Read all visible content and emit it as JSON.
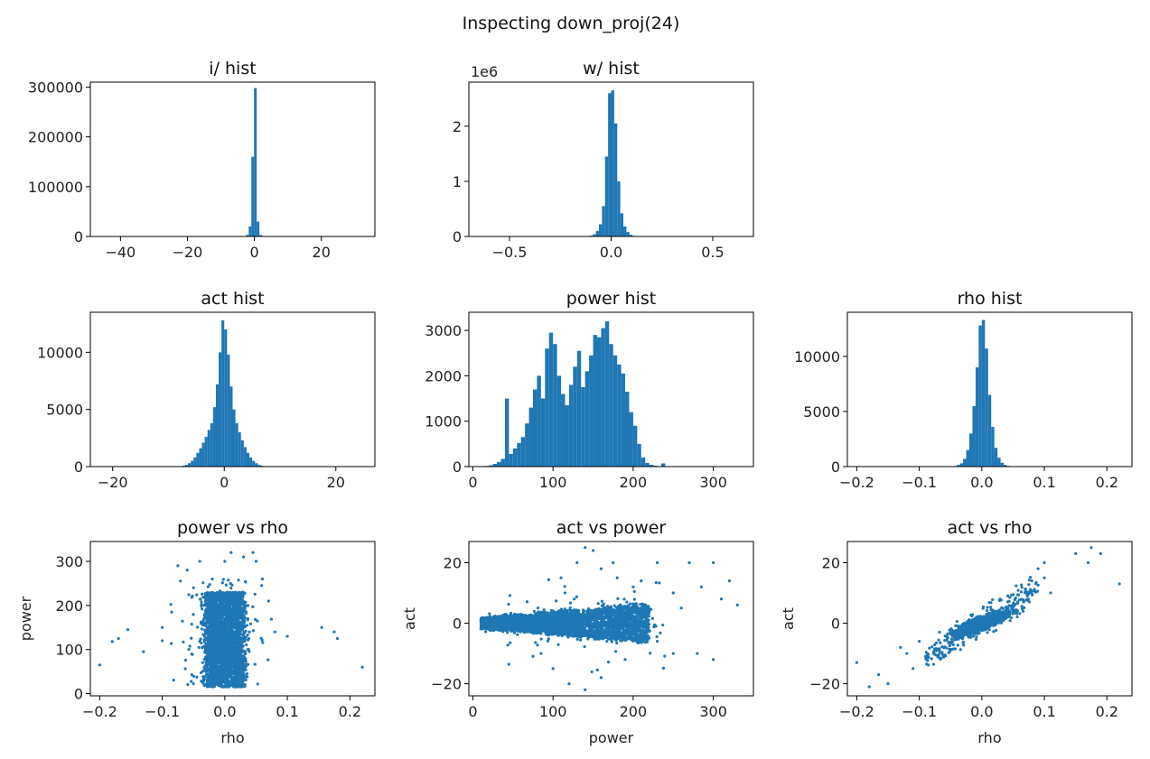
{
  "suptitle": "Inspecting down_proj(24)",
  "colors": {
    "series": "#1f77b4",
    "axes": "#000000",
    "text": "#222222"
  },
  "chart_data": [
    {
      "id": "i_hist",
      "type": "bar",
      "title": "i/ hist",
      "xlabel": "",
      "ylabel": "",
      "offset_text": "",
      "xlim": [
        -49,
        36
      ],
      "ylim": [
        0,
        310000
      ],
      "xticks": [
        -40,
        -20,
        0,
        20
      ],
      "xtick_labels": [
        "−40",
        "−20",
        "0",
        "20"
      ],
      "yticks": [
        0,
        100000,
        200000,
        300000
      ],
      "ytick_labels": [
        "0",
        "100000",
        "200000",
        "300000"
      ],
      "bins": [
        [
          -2.5,
          -1.7,
          3000
        ],
        [
          -1.7,
          -0.9,
          20000
        ],
        [
          -0.9,
          -0.1,
          160000
        ],
        [
          -0.1,
          0.7,
          298000
        ],
        [
          0.7,
          1.5,
          30000
        ],
        [
          1.5,
          2.3,
          3000
        ]
      ]
    },
    {
      "id": "w_hist",
      "type": "bar",
      "title": "w/ hist",
      "xlabel": "",
      "ylabel": "",
      "offset_text": "1e6",
      "xlim": [
        -0.7,
        0.7
      ],
      "ylim": [
        0,
        2800000
      ],
      "xticks": [
        -0.5,
        0.0,
        0.5
      ],
      "xtick_labels": [
        "−0.5",
        "0.0",
        "0.5"
      ],
      "yticks": [
        0,
        1000000,
        2000000
      ],
      "ytick_labels": [
        "0",
        "1",
        "2"
      ],
      "bins": [
        [
          -0.12,
          -0.105,
          5000
        ],
        [
          -0.105,
          -0.09,
          15000
        ],
        [
          -0.09,
          -0.075,
          40000
        ],
        [
          -0.075,
          -0.06,
          100000
        ],
        [
          -0.06,
          -0.045,
          220000
        ],
        [
          -0.045,
          -0.03,
          550000
        ],
        [
          -0.03,
          -0.015,
          1450000
        ],
        [
          -0.015,
          0.0,
          2600000
        ],
        [
          0.0,
          0.015,
          2650000
        ],
        [
          0.015,
          0.03,
          2050000
        ],
        [
          0.03,
          0.045,
          1000000
        ],
        [
          0.045,
          0.06,
          420000
        ],
        [
          0.06,
          0.075,
          180000
        ],
        [
          0.075,
          0.09,
          80000
        ],
        [
          0.09,
          0.105,
          30000
        ],
        [
          0.105,
          0.12,
          10000
        ]
      ]
    },
    {
      "id": "act_hist",
      "type": "bar",
      "title": "act hist",
      "xlabel": "",
      "ylabel": "",
      "offset_text": "",
      "xlim": [
        -24,
        27
      ],
      "ylim": [
        0,
        13500
      ],
      "xticks": [
        -20,
        0,
        20
      ],
      "xtick_labels": [
        "−20",
        "0",
        "20"
      ],
      "yticks": [
        0,
        5000,
        10000
      ],
      "ytick_labels": [
        "0",
        "5000",
        "10000"
      ],
      "bins": [
        [
          -7.5,
          -7,
          80
        ],
        [
          -7,
          -6.5,
          150
        ],
        [
          -6.5,
          -6,
          300
        ],
        [
          -6,
          -5.5,
          500
        ],
        [
          -5.5,
          -5,
          800
        ],
        [
          -5,
          -4.5,
          1200
        ],
        [
          -4.5,
          -4,
          1600
        ],
        [
          -4,
          -3.5,
          2100
        ],
        [
          -3.5,
          -3,
          2600
        ],
        [
          -3,
          -2.5,
          3200
        ],
        [
          -2.5,
          -2,
          3800
        ],
        [
          -2,
          -1.5,
          5200
        ],
        [
          -1.5,
          -1,
          7200
        ],
        [
          -1,
          -0.5,
          10000
        ],
        [
          -0.5,
          0,
          12800
        ],
        [
          0,
          0.5,
          12000
        ],
        [
          0.5,
          1,
          9800
        ],
        [
          1,
          1.5,
          7000
        ],
        [
          1.5,
          2,
          5000
        ],
        [
          2,
          2.5,
          3800
        ],
        [
          2.5,
          3,
          3000
        ],
        [
          3,
          3.5,
          2300
        ],
        [
          3.5,
          4,
          1700
        ],
        [
          4,
          4.5,
          1200
        ],
        [
          4.5,
          5,
          800
        ],
        [
          5,
          5.5,
          500
        ],
        [
          5.5,
          6,
          300
        ],
        [
          6,
          6.5,
          150
        ],
        [
          6.5,
          7,
          80
        ]
      ]
    },
    {
      "id": "power_hist",
      "type": "bar",
      "title": "power hist",
      "xlabel": "",
      "ylabel": "",
      "offset_text": "",
      "xlim": [
        -5,
        350
      ],
      "ylim": [
        0,
        3400
      ],
      "xticks": [
        0,
        100,
        200,
        300
      ],
      "xtick_labels": [
        "0",
        "100",
        "200",
        "300"
      ],
      "yticks": [
        0,
        1000,
        2000,
        3000
      ],
      "ytick_labels": [
        "0",
        "1000",
        "2000",
        "3000"
      ],
      "bins": [
        [
          10,
          15,
          10
        ],
        [
          15,
          20,
          15
        ],
        [
          20,
          25,
          30
        ],
        [
          25,
          30,
          60
        ],
        [
          30,
          35,
          100
        ],
        [
          35,
          40,
          170
        ],
        [
          40,
          45,
          1500
        ],
        [
          45,
          50,
          280
        ],
        [
          50,
          55,
          400
        ],
        [
          55,
          60,
          520
        ],
        [
          60,
          65,
          650
        ],
        [
          65,
          70,
          950
        ],
        [
          70,
          75,
          1300
        ],
        [
          75,
          80,
          1700
        ],
        [
          80,
          85,
          2000
        ],
        [
          85,
          90,
          1500
        ],
        [
          90,
          95,
          2600
        ],
        [
          95,
          100,
          2950
        ],
        [
          100,
          105,
          2700
        ],
        [
          105,
          110,
          2000
        ],
        [
          110,
          115,
          1600
        ],
        [
          115,
          120,
          1350
        ],
        [
          120,
          125,
          1800
        ],
        [
          125,
          130,
          2200
        ],
        [
          130,
          135,
          2550
        ],
        [
          135,
          140,
          1750
        ],
        [
          140,
          145,
          2100
        ],
        [
          145,
          150,
          2450
        ],
        [
          150,
          155,
          2900
        ],
        [
          155,
          160,
          2850
        ],
        [
          160,
          165,
          3050
        ],
        [
          165,
          170,
          3200
        ],
        [
          170,
          175,
          2700
        ],
        [
          175,
          180,
          2450
        ],
        [
          180,
          185,
          2250
        ],
        [
          185,
          190,
          2050
        ],
        [
          190,
          195,
          1650
        ],
        [
          195,
          200,
          1200
        ],
        [
          200,
          205,
          900
        ],
        [
          205,
          210,
          500
        ],
        [
          210,
          215,
          200
        ],
        [
          215,
          220,
          80
        ],
        [
          220,
          225,
          40
        ],
        [
          225,
          230,
          20
        ],
        [
          230,
          235,
          10
        ],
        [
          235,
          240,
          70
        ]
      ]
    },
    {
      "id": "rho_hist",
      "type": "bar",
      "title": "rho hist",
      "xlabel": "",
      "ylabel": "",
      "offset_text": "",
      "xlim": [
        -0.215,
        0.24
      ],
      "ylim": [
        0,
        14000
      ],
      "xticks": [
        -0.2,
        -0.1,
        0.0,
        0.1,
        0.2
      ],
      "xtick_labels": [
        "−0.2",
        "−0.1",
        "0.0",
        "0.1",
        "0.2"
      ],
      "yticks": [
        0,
        5000,
        10000
      ],
      "ytick_labels": [
        "0",
        "5000",
        "10000"
      ],
      "bins": [
        [
          -0.045,
          -0.04,
          50
        ],
        [
          -0.04,
          -0.035,
          150
        ],
        [
          -0.035,
          -0.03,
          300
        ],
        [
          -0.03,
          -0.025,
          700
        ],
        [
          -0.025,
          -0.02,
          1500
        ],
        [
          -0.02,
          -0.015,
          3000
        ],
        [
          -0.015,
          -0.01,
          5500
        ],
        [
          -0.01,
          -0.005,
          9000
        ],
        [
          -0.005,
          0,
          12800
        ],
        [
          0,
          0.005,
          13300
        ],
        [
          0.005,
          0.01,
          10700
        ],
        [
          0.01,
          0.015,
          6500
        ],
        [
          0.015,
          0.02,
          3600
        ],
        [
          0.02,
          0.025,
          1700
        ],
        [
          0.025,
          0.03,
          800
        ],
        [
          0.03,
          0.035,
          350
        ],
        [
          0.035,
          0.04,
          150
        ],
        [
          0.04,
          0.045,
          60
        ],
        [
          0.045,
          0.05,
          20
        ]
      ]
    },
    {
      "id": "power_vs_rho",
      "type": "scatter",
      "title": "power vs rho",
      "xlabel": "rho",
      "ylabel": "power",
      "offset_text": "",
      "xlim": [
        -0.215,
        0.24
      ],
      "ylim": [
        -5,
        345
      ],
      "xticks": [
        -0.2,
        -0.1,
        0.0,
        0.1,
        0.2
      ],
      "xtick_labels": [
        "−0.2",
        "−0.1",
        "0.0",
        "0.1",
        "0.2"
      ],
      "yticks": [
        0,
        100,
        200,
        300
      ],
      "ytick_labels": [
        "0",
        "100",
        "200",
        "300"
      ],
      "cloud": {
        "x_center": 0.0,
        "x_half_width": 0.03,
        "x_outer": 0.06,
        "y_min": 15,
        "y_max": 230
      },
      "outliers": [
        [
          -0.2,
          65
        ],
        [
          -0.18,
          118
        ],
        [
          -0.17,
          125
        ],
        [
          -0.155,
          145
        ],
        [
          -0.13,
          95
        ],
        [
          -0.1,
          120
        ],
        [
          -0.1,
          150
        ],
        [
          -0.085,
          185
        ],
        [
          -0.075,
          290
        ],
        [
          -0.06,
          280
        ],
        [
          -0.05,
          240
        ],
        [
          -0.04,
          300
        ],
        [
          -0.02,
          260
        ],
        [
          0.0,
          300
        ],
        [
          0.01,
          320
        ],
        [
          0.03,
          310
        ],
        [
          0.045,
          320
        ],
        [
          0.05,
          300
        ],
        [
          0.06,
          260
        ],
        [
          0.07,
          210
        ],
        [
          0.08,
          140
        ],
        [
          0.1,
          130
        ],
        [
          0.155,
          150
        ],
        [
          0.175,
          140
        ],
        [
          0.18,
          125
        ],
        [
          0.22,
          60
        ]
      ]
    },
    {
      "id": "act_vs_power",
      "type": "scatter",
      "title": "act vs power",
      "xlabel": "power",
      "ylabel": "act",
      "offset_text": "",
      "xlim": [
        -5,
        350
      ],
      "ylim": [
        -24,
        27
      ],
      "xticks": [
        0,
        100,
        200,
        300
      ],
      "xtick_labels": [
        "0",
        "100",
        "200",
        "300"
      ],
      "yticks": [
        -20,
        0,
        20
      ],
      "ytick_labels": [
        "−20",
        "0",
        "20"
      ],
      "cloud": {
        "x_min": 10,
        "x_max": 220,
        "spread_start": 2,
        "spread_end": 8
      },
      "outliers": [
        [
          110,
          15
        ],
        [
          115,
          10
        ],
        [
          130,
          20
        ],
        [
          140,
          25
        ],
        [
          150,
          24
        ],
        [
          160,
          18
        ],
        [
          175,
          20
        ],
        [
          180,
          15
        ],
        [
          200,
          12
        ],
        [
          210,
          14
        ],
        [
          230,
          20
        ],
        [
          250,
          10
        ],
        [
          260,
          5
        ],
        [
          270,
          20
        ],
        [
          280,
          -10
        ],
        [
          300,
          20
        ],
        [
          310,
          8
        ],
        [
          320,
          14
        ],
        [
          330,
          6
        ],
        [
          85,
          -10
        ],
        [
          100,
          -15
        ],
        [
          120,
          -20
        ],
        [
          140,
          -22
        ],
        [
          160,
          -18
        ],
        [
          190,
          -12
        ],
        [
          230,
          -6
        ],
        [
          250,
          -10
        ],
        [
          300,
          -12
        ],
        [
          285,
          12
        ]
      ]
    },
    {
      "id": "act_vs_rho",
      "type": "scatter",
      "title": "act vs rho",
      "xlabel": "rho",
      "ylabel": "act",
      "offset_text": "",
      "xlim": [
        -0.215,
        0.24
      ],
      "ylim": [
        -24,
        27
      ],
      "xticks": [
        -0.2,
        -0.1,
        0.0,
        0.1,
        0.2
      ],
      "xtick_labels": [
        "−0.2",
        "−0.1",
        "0.0",
        "0.1",
        "0.2"
      ],
      "yticks": [
        -20,
        0,
        20
      ],
      "ytick_labels": [
        "−20",
        "0",
        "20"
      ],
      "cloud": {
        "slope": 150,
        "x_half_width": 0.05
      },
      "outliers": [
        [
          -0.2,
          -13
        ],
        [
          -0.18,
          -21
        ],
        [
          -0.165,
          -17
        ],
        [
          -0.15,
          -20
        ],
        [
          -0.13,
          -8
        ],
        [
          -0.12,
          -10
        ],
        [
          -0.11,
          -15
        ],
        [
          -0.1,
          -6
        ],
        [
          -0.09,
          -11
        ],
        [
          0.08,
          14
        ],
        [
          0.09,
          18
        ],
        [
          0.1,
          15
        ],
        [
          0.1,
          20
        ],
        [
          0.11,
          10
        ],
        [
          0.15,
          23
        ],
        [
          0.17,
          20
        ],
        [
          0.175,
          25
        ],
        [
          0.19,
          23
        ],
        [
          0.22,
          13
        ]
      ]
    }
  ]
}
